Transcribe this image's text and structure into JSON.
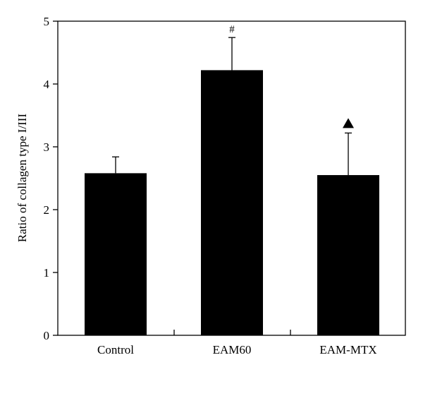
{
  "chart_data": {
    "type": "bar",
    "title": "",
    "xlabel": "",
    "ylabel": "Ratio of collagen type I/III",
    "ylim": [
      0,
      5
    ],
    "yticks": [
      0,
      1,
      2,
      3,
      4,
      5
    ],
    "grid": false,
    "legend": "none",
    "bar_color": "#000000",
    "categories": [
      "Control",
      "EAM60",
      "EAM-MTX"
    ],
    "series": [
      {
        "values": [
          2.58,
          4.22,
          2.55
        ],
        "error_upper": [
          0.26,
          0.52,
          0.67
        ]
      }
    ],
    "annotations": [
      {
        "category": "EAM60",
        "text": "#"
      },
      {
        "category": "EAM-MTX",
        "marker": "triangle-up"
      }
    ]
  }
}
